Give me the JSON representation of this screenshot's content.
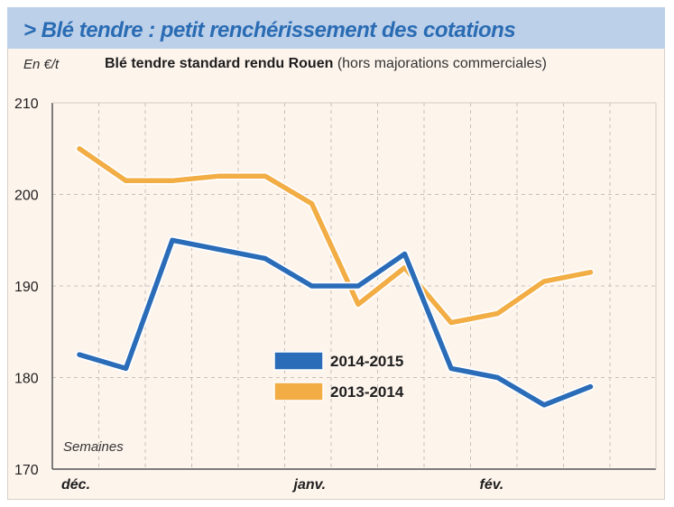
{
  "header": {
    "title": "> Blé tendre : petit renchérissement des cotations"
  },
  "chart_data": {
    "type": "line",
    "title": "Blé tendre standard rendu Rouen",
    "title_note": "(hors majorations commerciales)",
    "ylabel": "En €/t",
    "xlabel": "Semaines",
    "ylim": [
      170,
      210
    ],
    "yticks": [
      "210",
      "200",
      "190",
      "180",
      "170"
    ],
    "x": [
      0,
      1,
      2,
      3,
      4,
      5,
      6,
      7,
      8,
      9,
      10,
      11,
      12
    ],
    "xtick_labels": [
      {
        "label": "déc.",
        "x": 0
      },
      {
        "label": "janv.",
        "x": 5
      },
      {
        "label": "fév.",
        "x": 9
      }
    ],
    "series": [
      {
        "name": "2014-2015",
        "color": "#2a6cb8",
        "values": [
          182.5,
          181,
          195,
          194,
          193,
          190,
          190,
          193.5,
          181,
          180,
          177,
          179,
          null
        ]
      },
      {
        "name": "2013-2014",
        "color": "#f2ad45",
        "values": [
          205,
          201.5,
          201.5,
          202,
          202,
          199,
          188,
          192,
          186,
          187,
          190.5,
          191.5,
          null
        ]
      }
    ],
    "grid": true,
    "legend_position": "center-bottom"
  }
}
